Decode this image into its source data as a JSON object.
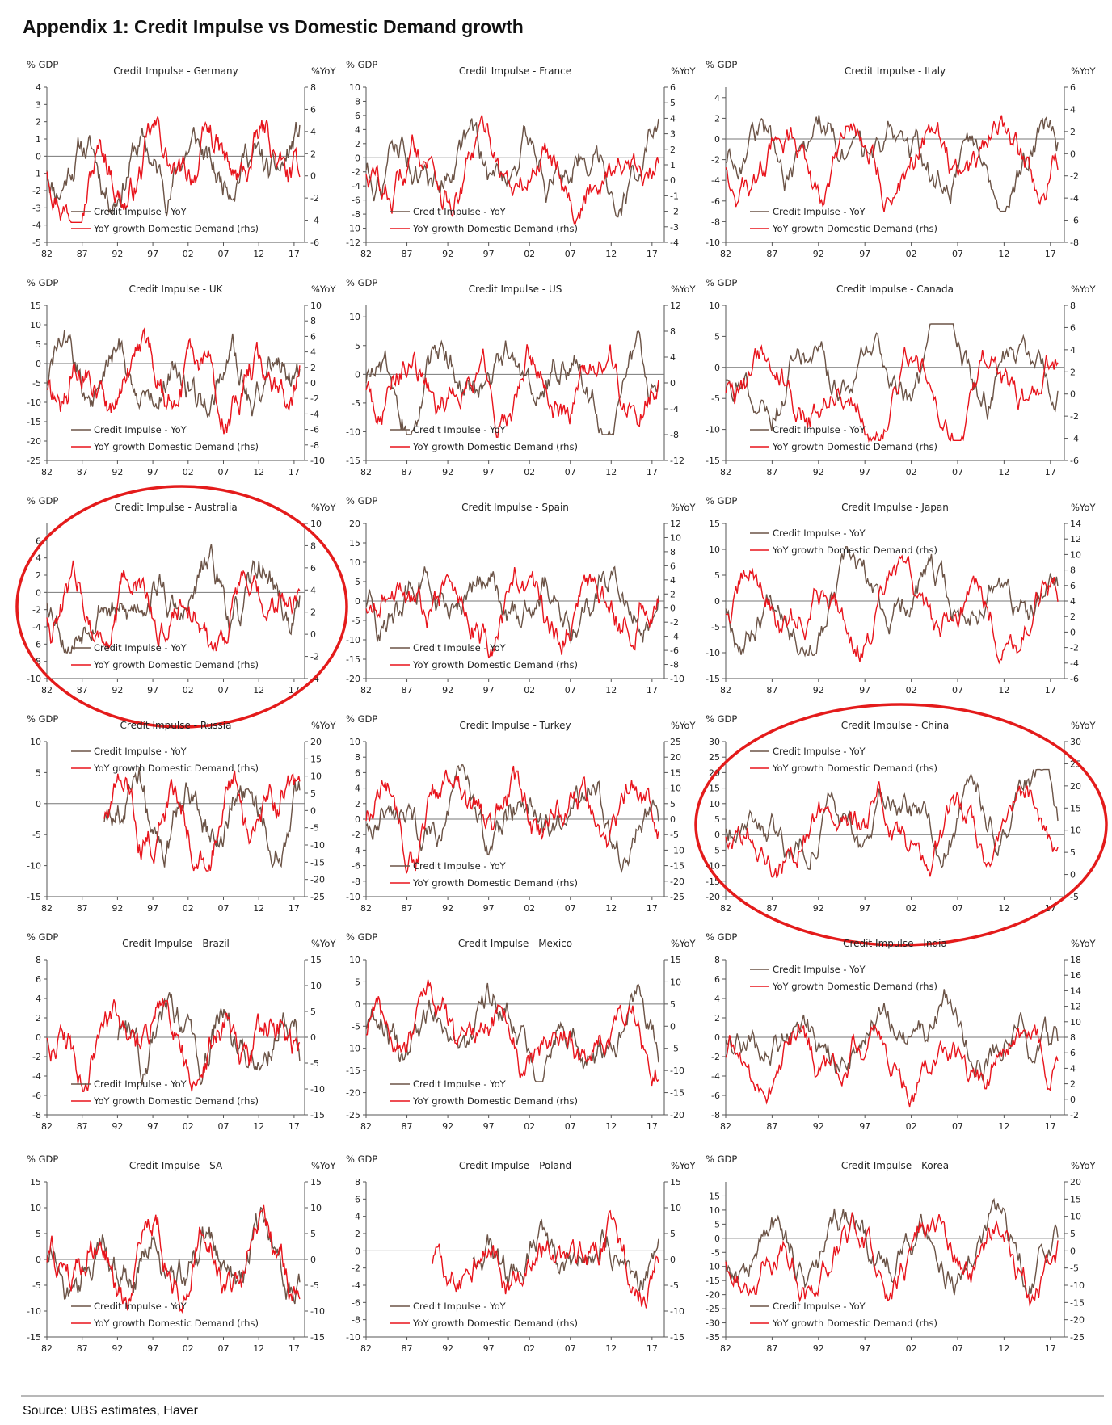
{
  "page": {
    "title": "Appendix 1: Credit Impulse vs Domestic Demand growth",
    "source": "Source:  UBS estimates, Haver"
  },
  "colors": {
    "credit": "#6b5346",
    "demand": "#e8141c",
    "circle": "#e41b1b",
    "axis": "#555555",
    "zero": "#777777"
  },
  "common": {
    "left_unit": "% GDP",
    "right_unit": "%YoY",
    "legend_credit": "Credit Impulse - YoY",
    "legend_demand": "YoY growth Domestic Demand (rhs)",
    "x_labels": [
      "82",
      "87",
      "92",
      "97",
      "02",
      "07",
      "12",
      "17"
    ]
  },
  "chart_data": [
    {
      "type": "line",
      "title": "Credit Impulse - Germany",
      "ylim": [
        -5,
        4
      ],
      "yticks": [
        -5,
        -4,
        -3,
        -2,
        -1,
        0,
        1,
        2,
        3,
        4
      ],
      "y2lim": [
        -6,
        8
      ],
      "y2ticks": [
        -6,
        -4,
        -2,
        0,
        2,
        4,
        6,
        8
      ],
      "legend": "bottom-left",
      "series_start": [
        1982,
        1982
      ],
      "highlighted": false
    },
    {
      "type": "line",
      "title": "Credit Impulse - France",
      "ylim": [
        -12,
        10
      ],
      "yticks": [
        -12,
        -10,
        -8,
        -6,
        -4,
        -2,
        0,
        2,
        4,
        6,
        8,
        10
      ],
      "y2lim": [
        -4,
        6
      ],
      "y2ticks": [
        -4,
        -3,
        -2,
        -1,
        0,
        1,
        2,
        3,
        4,
        5,
        6
      ],
      "legend": "bottom-left",
      "series_start": [
        1982,
        1982
      ],
      "highlighted": false
    },
    {
      "type": "line",
      "title": "Credit Impulse - Italy",
      "ylim": [
        -10,
        5
      ],
      "yticks": [
        -10,
        -8,
        -6,
        -4,
        -2,
        0,
        2,
        4
      ],
      "y2lim": [
        -8,
        6
      ],
      "y2ticks": [
        -8,
        -6,
        -4,
        -2,
        0,
        2,
        4,
        6
      ],
      "legend": "bottom-left",
      "series_start": [
        1982,
        1982
      ],
      "highlighted": false
    },
    {
      "type": "line",
      "title": "Credit Impulse - UK",
      "ylim": [
        -25,
        15
      ],
      "yticks": [
        -25,
        -20,
        -15,
        -10,
        -5,
        0,
        5,
        10,
        15
      ],
      "y2lim": [
        -10,
        10
      ],
      "y2ticks": [
        -10,
        -8,
        -6,
        -4,
        -2,
        0,
        2,
        4,
        6,
        8,
        10
      ],
      "legend": "bottom-left",
      "series_start": [
        1982,
        1982
      ],
      "highlighted": false
    },
    {
      "type": "line",
      "title": "Credit Impulse - US",
      "ylim": [
        -15,
        12
      ],
      "yticks": [
        -15,
        -10,
        -5,
        0,
        5,
        10
      ],
      "y2lim": [
        -12,
        12
      ],
      "y2ticks": [
        -12,
        -8,
        -4,
        0,
        4,
        8,
        12
      ],
      "legend": "bottom-left",
      "series_start": [
        1982,
        1982
      ],
      "highlighted": false
    },
    {
      "type": "line",
      "title": "Credit Impulse - Canada",
      "ylim": [
        -15,
        10
      ],
      "yticks": [
        -15,
        -10,
        -5,
        0,
        5,
        10
      ],
      "y2lim": [
        -6,
        8
      ],
      "y2ticks": [
        -6,
        -4,
        -2,
        0,
        2,
        4,
        6,
        8
      ],
      "legend": "bottom-left",
      "series_start": [
        1982,
        1982
      ],
      "highlighted": false
    },
    {
      "type": "line",
      "title": "Credit Impulse - Australia",
      "ylim": [
        -10,
        8
      ],
      "yticks": [
        -10,
        -8,
        -6,
        -4,
        -2,
        0,
        2,
        4,
        6
      ],
      "y2lim": [
        -4,
        10
      ],
      "y2ticks": [
        -4,
        -2,
        0,
        2,
        4,
        6,
        8,
        10
      ],
      "legend": "bottom-left",
      "series_start": [
        1982,
        1982
      ],
      "highlighted": true
    },
    {
      "type": "line",
      "title": "Credit Impulse - Spain",
      "ylim": [
        -20,
        20
      ],
      "yticks": [
        -20,
        -15,
        -10,
        -5,
        0,
        5,
        10,
        15,
        20
      ],
      "y2lim": [
        -10,
        12
      ],
      "y2ticks": [
        -10,
        -8,
        -6,
        -4,
        -2,
        0,
        2,
        4,
        6,
        8,
        10,
        12
      ],
      "legend": "bottom-left",
      "series_start": [
        1982,
        1982
      ],
      "highlighted": false
    },
    {
      "type": "line",
      "title": "Credit Impulse - Japan",
      "ylim": [
        -15,
        15
      ],
      "yticks": [
        -15,
        -10,
        -5,
        0,
        5,
        10,
        15
      ],
      "y2lim": [
        -6,
        14
      ],
      "y2ticks": [
        -6,
        -4,
        -2,
        0,
        2,
        4,
        6,
        8,
        10,
        12,
        14
      ],
      "legend": "top-left",
      "series_start": [
        1982,
        1982
      ],
      "highlighted": false
    },
    {
      "type": "line",
      "title": "Credit Impulse - Russia",
      "ylim": [
        -15,
        10
      ],
      "yticks": [
        -15,
        -10,
        -5,
        0,
        5,
        10
      ],
      "y2lim": [
        -25,
        20
      ],
      "y2ticks": [
        -25,
        -20,
        -15,
        -10,
        -5,
        0,
        5,
        10,
        15,
        20
      ],
      "legend": "top-left",
      "series_start": [
        1990,
        1990
      ],
      "highlighted": false
    },
    {
      "type": "line",
      "title": "Credit Impulse - Turkey",
      "ylim": [
        -10,
        10
      ],
      "yticks": [
        -10,
        -8,
        -6,
        -4,
        -2,
        0,
        2,
        4,
        6,
        8,
        10
      ],
      "y2lim": [
        -25,
        25
      ],
      "y2ticks": [
        -25,
        -20,
        -15,
        -10,
        -5,
        0,
        5,
        10,
        15,
        20,
        25
      ],
      "legend": "bottom-left",
      "series_start": [
        1982,
        1982
      ],
      "highlighted": false
    },
    {
      "type": "line",
      "title": "Credit Impulse - China",
      "ylim": [
        -20,
        30
      ],
      "yticks": [
        -20,
        -15,
        -10,
        -5,
        0,
        5,
        10,
        15,
        20,
        25,
        30
      ],
      "y2lim": [
        -5,
        30
      ],
      "y2ticks": [
        -5,
        0,
        5,
        10,
        15,
        20,
        25,
        30
      ],
      "legend": "top-left",
      "series_start": [
        1982,
        1982
      ],
      "highlighted": true
    },
    {
      "type": "line",
      "title": "Credit Impulse - Brazil",
      "ylim": [
        -8,
        8
      ],
      "yticks": [
        -8,
        -6,
        -4,
        -2,
        0,
        2,
        4,
        6,
        8
      ],
      "y2lim": [
        -15,
        15
      ],
      "y2ticks": [
        -15,
        -10,
        -5,
        0,
        5,
        10,
        15
      ],
      "legend": "bottom-left",
      "series_start": [
        1992,
        1982
      ],
      "highlighted": false
    },
    {
      "type": "line",
      "title": "Credit Impulse - Mexico",
      "ylim": [
        -25,
        10
      ],
      "yticks": [
        -25,
        -20,
        -15,
        -10,
        -5,
        0,
        5,
        10
      ],
      "y2lim": [
        -20,
        15
      ],
      "y2ticks": [
        -20,
        -15,
        -10,
        -5,
        0,
        5,
        10,
        15
      ],
      "legend": "bottom-left",
      "series_start": [
        1982,
        1982
      ],
      "highlighted": false
    },
    {
      "type": "line",
      "title": "Credit Impulse - India",
      "ylim": [
        -8,
        8
      ],
      "yticks": [
        -8,
        -6,
        -4,
        -2,
        0,
        2,
        4,
        6,
        8
      ],
      "y2lim": [
        -2,
        18
      ],
      "y2ticks": [
        -2,
        0,
        2,
        4,
        6,
        8,
        10,
        12,
        14,
        16,
        18
      ],
      "legend": "top-left",
      "series_start": [
        1982,
        1982
      ],
      "highlighted": false
    },
    {
      "type": "line",
      "title": "Credit Impulse - SA",
      "ylim": [
        -15,
        15
      ],
      "yticks": [
        -15,
        -10,
        -5,
        0,
        5,
        10,
        15
      ],
      "y2lim": [
        -15,
        15
      ],
      "y2ticks": [
        -15,
        -10,
        -5,
        0,
        5,
        10,
        15
      ],
      "legend": "bottom-left",
      "series_start": [
        1982,
        1982
      ],
      "highlighted": false
    },
    {
      "type": "line",
      "title": "Credit Impulse - Poland",
      "ylim": [
        -10,
        8
      ],
      "yticks": [
        -10,
        -8,
        -6,
        -4,
        -2,
        0,
        2,
        4,
        6,
        8
      ],
      "y2lim": [
        -15,
        15
      ],
      "y2ticks": [
        -15,
        -10,
        -5,
        0,
        5,
        10,
        15
      ],
      "legend": "bottom-left",
      "series_start": [
        1995,
        1990
      ],
      "highlighted": false
    },
    {
      "type": "line",
      "title": "Credit Impulse - Korea",
      "ylim": [
        -35,
        20
      ],
      "yticks": [
        -35,
        -30,
        -25,
        -20,
        -15,
        -10,
        -5,
        0,
        5,
        10,
        15
      ],
      "y2lim": [
        -25,
        20
      ],
      "y2ticks": [
        -25,
        -20,
        -15,
        -10,
        -5,
        0,
        5,
        10,
        15,
        20
      ],
      "legend": "bottom-left",
      "series_start": [
        1982,
        1982
      ],
      "highlighted": false
    }
  ]
}
